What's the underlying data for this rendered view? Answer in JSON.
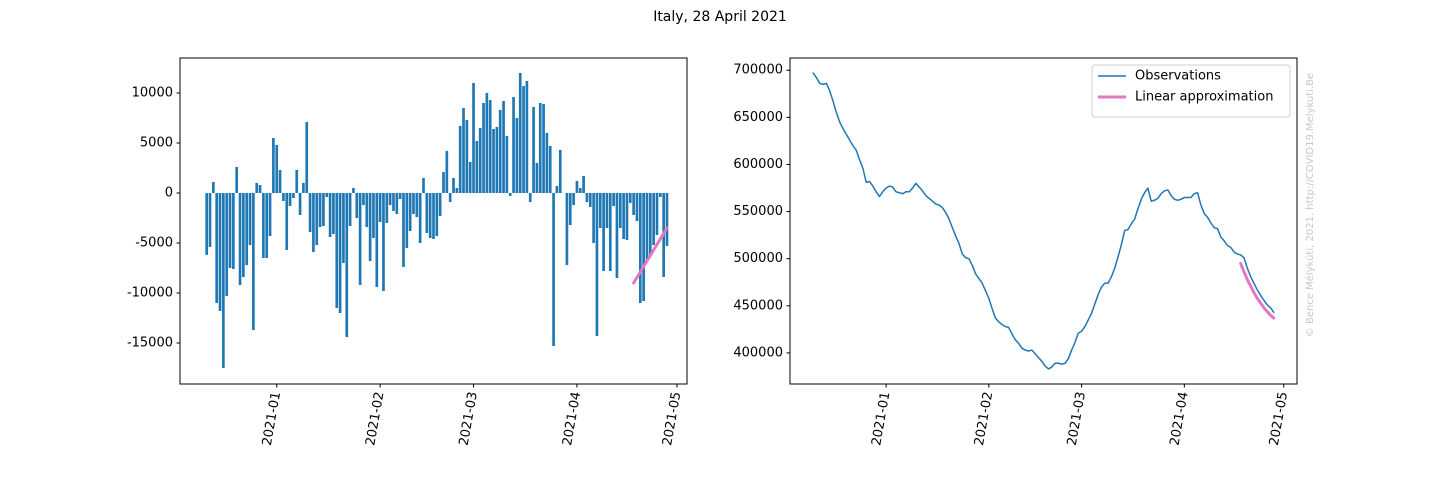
{
  "title": "Italy, 28 April 2021",
  "watermark": "© Bence Mélykúti, 2021. http://COVID19.Melykuti.Be",
  "chart_data": [
    {
      "type": "bar",
      "xlim": [
        "2020-12-03",
        "2021-05-04"
      ],
      "ylim": [
        -19100,
        13500
      ],
      "xticks": [
        {
          "value": "2021-01-01",
          "label": "2021-01"
        },
        {
          "value": "2021-02-01",
          "label": "2021-02"
        },
        {
          "value": "2021-03-01",
          "label": "2021-03"
        },
        {
          "value": "2021-04-01",
          "label": "2021-04"
        },
        {
          "value": "2021-05-01",
          "label": "2021-05"
        }
      ],
      "yticks": [
        -15000,
        -10000,
        -5000,
        0,
        5000,
        10000
      ],
      "series": [
        {
          "color": "#1f77b4",
          "x": [
            "2020-12-11",
            "2020-12-12",
            "2020-12-13",
            "2020-12-14",
            "2020-12-15",
            "2020-12-16",
            "2020-12-17",
            "2020-12-18",
            "2020-12-19",
            "2020-12-20",
            "2020-12-21",
            "2020-12-22",
            "2020-12-23",
            "2020-12-24",
            "2020-12-25",
            "2020-12-26",
            "2020-12-27",
            "2020-12-28",
            "2020-12-29",
            "2020-12-30",
            "2020-12-31",
            "2021-01-01",
            "2021-01-02",
            "2021-01-03",
            "2021-01-04",
            "2021-01-05",
            "2021-01-06",
            "2021-01-07",
            "2021-01-08",
            "2021-01-09",
            "2021-01-10",
            "2021-01-11",
            "2021-01-12",
            "2021-01-13",
            "2021-01-14",
            "2021-01-15",
            "2021-01-16",
            "2021-01-17",
            "2021-01-18",
            "2021-01-19",
            "2021-01-20",
            "2021-01-21",
            "2021-01-22",
            "2021-01-23",
            "2021-01-24",
            "2021-01-25",
            "2021-01-26",
            "2021-01-27",
            "2021-01-28",
            "2021-01-29",
            "2021-01-30",
            "2021-01-31",
            "2021-02-01",
            "2021-02-02",
            "2021-02-03",
            "2021-02-04",
            "2021-02-05",
            "2021-02-06",
            "2021-02-07",
            "2021-02-08",
            "2021-02-09",
            "2021-02-10",
            "2021-02-11",
            "2021-02-12",
            "2021-02-13",
            "2021-02-14",
            "2021-02-15",
            "2021-02-16",
            "2021-02-17",
            "2021-02-18",
            "2021-02-19",
            "2021-02-20",
            "2021-02-21",
            "2021-02-22",
            "2021-02-23",
            "2021-02-24",
            "2021-02-25",
            "2021-02-26",
            "2021-02-27",
            "2021-02-28",
            "2021-03-01",
            "2021-03-02",
            "2021-03-03",
            "2021-03-04",
            "2021-03-05",
            "2021-03-06",
            "2021-03-07",
            "2021-03-08",
            "2021-03-09",
            "2021-03-10",
            "2021-03-11",
            "2021-03-12",
            "2021-03-13",
            "2021-03-14",
            "2021-03-15",
            "2021-03-16",
            "2021-03-17",
            "2021-03-18",
            "2021-03-19",
            "2021-03-20",
            "2021-03-21",
            "2021-03-22",
            "2021-03-23",
            "2021-03-24",
            "2021-03-25",
            "2021-03-26",
            "2021-03-27",
            "2021-03-28",
            "2021-03-29",
            "2021-03-30",
            "2021-03-31",
            "2021-04-01",
            "2021-04-02",
            "2021-04-03",
            "2021-04-04",
            "2021-04-05",
            "2021-04-06",
            "2021-04-07",
            "2021-04-08",
            "2021-04-09",
            "2021-04-10",
            "2021-04-11",
            "2021-04-12",
            "2021-04-13",
            "2021-04-14",
            "2021-04-15",
            "2021-04-16",
            "2021-04-17",
            "2021-04-18",
            "2021-04-19",
            "2021-04-20",
            "2021-04-21",
            "2021-04-22",
            "2021-04-23",
            "2021-04-24",
            "2021-04-25",
            "2021-04-26",
            "2021-04-27",
            "2021-04-28"
          ],
          "values": [
            -6200,
            -5400,
            1100,
            -11000,
            -11800,
            -17500,
            -10300,
            -7500,
            -7600,
            2600,
            -9200,
            -8400,
            -7200,
            -5200,
            -13700,
            1000,
            800,
            -6500,
            -6500,
            -4300,
            5500,
            4800,
            2300,
            -800,
            -5700,
            -1300,
            -500,
            2300,
            -2200,
            1000,
            7100,
            -3900,
            -5900,
            -5200,
            -3400,
            -3300,
            -400,
            -4400,
            -4100,
            -11500,
            -12000,
            -7000,
            -14400,
            -3300,
            500,
            -2500,
            -9200,
            -1200,
            -3400,
            -6800,
            -4500,
            -9400,
            -2900,
            -9800,
            -3000,
            -1200,
            -1800,
            -2100,
            -600,
            -7400,
            -5500,
            -3800,
            -2100,
            -2400,
            -5000,
            1500,
            -4000,
            -4500,
            -4600,
            -4300,
            -2300,
            2100,
            4200,
            -900,
            1500,
            500,
            6700,
            8500,
            7300,
            3100,
            11000,
            5200,
            6500,
            9000,
            10000,
            9300,
            6400,
            6600,
            8300,
            9200,
            5700,
            -300,
            9600,
            7500,
            12000,
            10700,
            11200,
            -900,
            8600,
            3000,
            9000,
            8900,
            6000,
            4700,
            -15300,
            700,
            4300,
            0,
            -7200,
            -3200,
            -1200,
            1200,
            500,
            1700,
            -900,
            -1400,
            -5000,
            -14300,
            -3500,
            -7800,
            -3500,
            -7800,
            -1300,
            -8500,
            -3500,
            -4600,
            -4700,
            -1000,
            -2200,
            -2800,
            -11000,
            -10800,
            -6800,
            -6200,
            -5200,
            -4200,
            -400,
            -8400,
            -5300
          ]
        },
        {
          "type": "line",
          "color": "#e377c2",
          "x": [
            "2021-04-18",
            "2021-04-19",
            "2021-04-20",
            "2021-04-21",
            "2021-04-22",
            "2021-04-23",
            "2021-04-24",
            "2021-04-25",
            "2021-04-26",
            "2021-04-27",
            "2021-04-28"
          ],
          "values": [
            -9000,
            -8450,
            -7900,
            -7350,
            -6800,
            -6250,
            -5700,
            -5150,
            -4600,
            -4050,
            -3500
          ]
        }
      ]
    },
    {
      "type": "line",
      "xlim": [
        "2020-12-03",
        "2021-05-05"
      ],
      "ylim": [
        367000,
        713000
      ],
      "xticks": [
        {
          "value": "2021-01-01",
          "label": "2021-01"
        },
        {
          "value": "2021-02-01",
          "label": "2021-02"
        },
        {
          "value": "2021-03-01",
          "label": "2021-03"
        },
        {
          "value": "2021-04-01",
          "label": "2021-04"
        },
        {
          "value": "2021-05-01",
          "label": "2021-05"
        }
      ],
      "yticks": [
        400000,
        450000,
        500000,
        550000,
        600000,
        650000,
        700000
      ],
      "legend": "upper right",
      "series": [
        {
          "name": "Observations",
          "color": "#1f77b4",
          "x": [
            "2020-12-10",
            "2020-12-11",
            "2020-12-12",
            "2020-12-13",
            "2020-12-14",
            "2020-12-15",
            "2020-12-16",
            "2020-12-17",
            "2020-12-18",
            "2020-12-19",
            "2020-12-20",
            "2020-12-21",
            "2020-12-22",
            "2020-12-23",
            "2020-12-24",
            "2020-12-25",
            "2020-12-26",
            "2020-12-27",
            "2020-12-28",
            "2020-12-29",
            "2020-12-30",
            "2020-12-31",
            "2021-01-01",
            "2021-01-02",
            "2021-01-03",
            "2021-01-04",
            "2021-01-05",
            "2021-01-06",
            "2021-01-07",
            "2021-01-08",
            "2021-01-09",
            "2021-01-10",
            "2021-01-11",
            "2021-01-12",
            "2021-01-13",
            "2021-01-14",
            "2021-01-15",
            "2021-01-16",
            "2021-01-17",
            "2021-01-18",
            "2021-01-19",
            "2021-01-20",
            "2021-01-21",
            "2021-01-22",
            "2021-01-23",
            "2021-01-24",
            "2021-01-25",
            "2021-01-26",
            "2021-01-27",
            "2021-01-28",
            "2021-01-29",
            "2021-01-30",
            "2021-01-31",
            "2021-02-01",
            "2021-02-02",
            "2021-02-03",
            "2021-02-04",
            "2021-02-05",
            "2021-02-06",
            "2021-02-07",
            "2021-02-08",
            "2021-02-09",
            "2021-02-10",
            "2021-02-11",
            "2021-02-12",
            "2021-02-13",
            "2021-02-14",
            "2021-02-15",
            "2021-02-16",
            "2021-02-17",
            "2021-02-18",
            "2021-02-19",
            "2021-02-20",
            "2021-02-21",
            "2021-02-22",
            "2021-02-23",
            "2021-02-24",
            "2021-02-25",
            "2021-02-26",
            "2021-02-27",
            "2021-02-28",
            "2021-03-01",
            "2021-03-02",
            "2021-03-03",
            "2021-03-04",
            "2021-03-05",
            "2021-03-06",
            "2021-03-07",
            "2021-03-08",
            "2021-03-09",
            "2021-03-10",
            "2021-03-11",
            "2021-03-12",
            "2021-03-13",
            "2021-03-14",
            "2021-03-15",
            "2021-03-16",
            "2021-03-17",
            "2021-03-18",
            "2021-03-19",
            "2021-03-20",
            "2021-03-21",
            "2021-03-22",
            "2021-03-23",
            "2021-03-24",
            "2021-03-25",
            "2021-03-26",
            "2021-03-27",
            "2021-03-28",
            "2021-03-29",
            "2021-03-30",
            "2021-03-31",
            "2021-04-01",
            "2021-04-02",
            "2021-04-03",
            "2021-04-04",
            "2021-04-05",
            "2021-04-06",
            "2021-04-07",
            "2021-04-08",
            "2021-04-09",
            "2021-04-10",
            "2021-04-11",
            "2021-04-12",
            "2021-04-13",
            "2021-04-14",
            "2021-04-15",
            "2021-04-16",
            "2021-04-17",
            "2021-04-18",
            "2021-04-19",
            "2021-04-20",
            "2021-04-21",
            "2021-04-22",
            "2021-04-23",
            "2021-04-24",
            "2021-04-25",
            "2021-04-26",
            "2021-04-27",
            "2021-04-28"
          ],
          "values": [
            697000,
            692000,
            686000,
            685000,
            686000,
            678000,
            667000,
            655000,
            645000,
            638000,
            632000,
            626000,
            620000,
            615000,
            605000,
            596000,
            581000,
            582000,
            577000,
            571000,
            566000,
            571000,
            575000,
            577000,
            576000,
            571000,
            570000,
            569000,
            571000,
            571000,
            575000,
            580000,
            576000,
            572000,
            567000,
            564000,
            561000,
            558000,
            557000,
            554000,
            549000,
            542000,
            533000,
            524000,
            516000,
            505000,
            501000,
            500000,
            493000,
            484000,
            479000,
            474000,
            466000,
            458000,
            447000,
            437000,
            433000,
            430000,
            428000,
            427000,
            420000,
            414000,
            410000,
            405000,
            403000,
            402000,
            403000,
            399000,
            395000,
            391000,
            386000,
            383000,
            385000,
            389000,
            389000,
            388000,
            389000,
            394000,
            403000,
            411000,
            421000,
            423000,
            428000,
            435000,
            442000,
            452000,
            462000,
            470000,
            474000,
            474000,
            481000,
            490000,
            502000,
            515000,
            530000,
            531000,
            537000,
            542000,
            553000,
            563000,
            570000,
            575000,
            561000,
            562000,
            564000,
            569000,
            572000,
            573000,
            567000,
            563000,
            562000,
            563000,
            565000,
            565000,
            565000,
            569000,
            570000,
            557000,
            548000,
            544000,
            538000,
            533000,
            532000,
            523000,
            519000,
            514000,
            512000,
            507000,
            505000,
            504000,
            501000,
            490000,
            481000,
            474000,
            467000,
            461000,
            456000,
            451000,
            448000,
            443000
          ]
        },
        {
          "name": "Linear approximation",
          "color": "#e377c2",
          "x": [
            "2021-04-18",
            "2021-04-19",
            "2021-04-20",
            "2021-04-21",
            "2021-04-22",
            "2021-04-23",
            "2021-04-24",
            "2021-04-25",
            "2021-04-26",
            "2021-04-27",
            "2021-04-28"
          ],
          "values": [
            495000,
            486000,
            478000,
            471000,
            464000,
            458000,
            453000,
            448000,
            444000,
            440000,
            437000
          ]
        }
      ]
    }
  ]
}
